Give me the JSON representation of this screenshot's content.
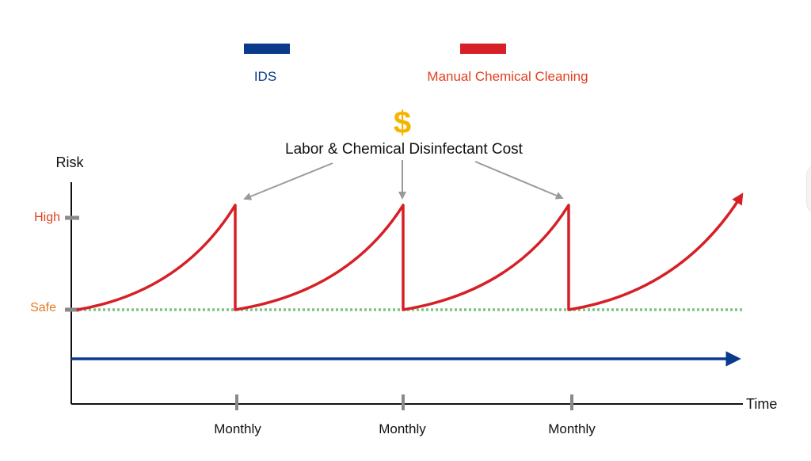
{
  "legend": {
    "items": [
      {
        "label": "IDS",
        "color": "#0a3a8c"
      },
      {
        "label": "Manual Chemical Cleaning",
        "color": "#d61f26"
      }
    ]
  },
  "cost_annotation": {
    "symbol": "$",
    "label": "Labor & Chemical Disinfectant Cost"
  },
  "axes": {
    "y_label": "Risk",
    "x_label": "Time",
    "y_ticks": [
      {
        "label": "High",
        "color": "#e04020"
      },
      {
        "label": "Safe",
        "color": "#e57a1e"
      }
    ],
    "x_ticks": [
      "Monthly",
      "Monthly",
      "Monthly"
    ]
  },
  "colors": {
    "ids_line": "#0a3a8c",
    "manual_line": "#d61f26",
    "safe_line": "#7cc47f",
    "arrow_gray": "#9a9a9a",
    "axis": "#111111",
    "dollar": "#f5b400",
    "tick_gray": "#8a8a8a"
  }
}
